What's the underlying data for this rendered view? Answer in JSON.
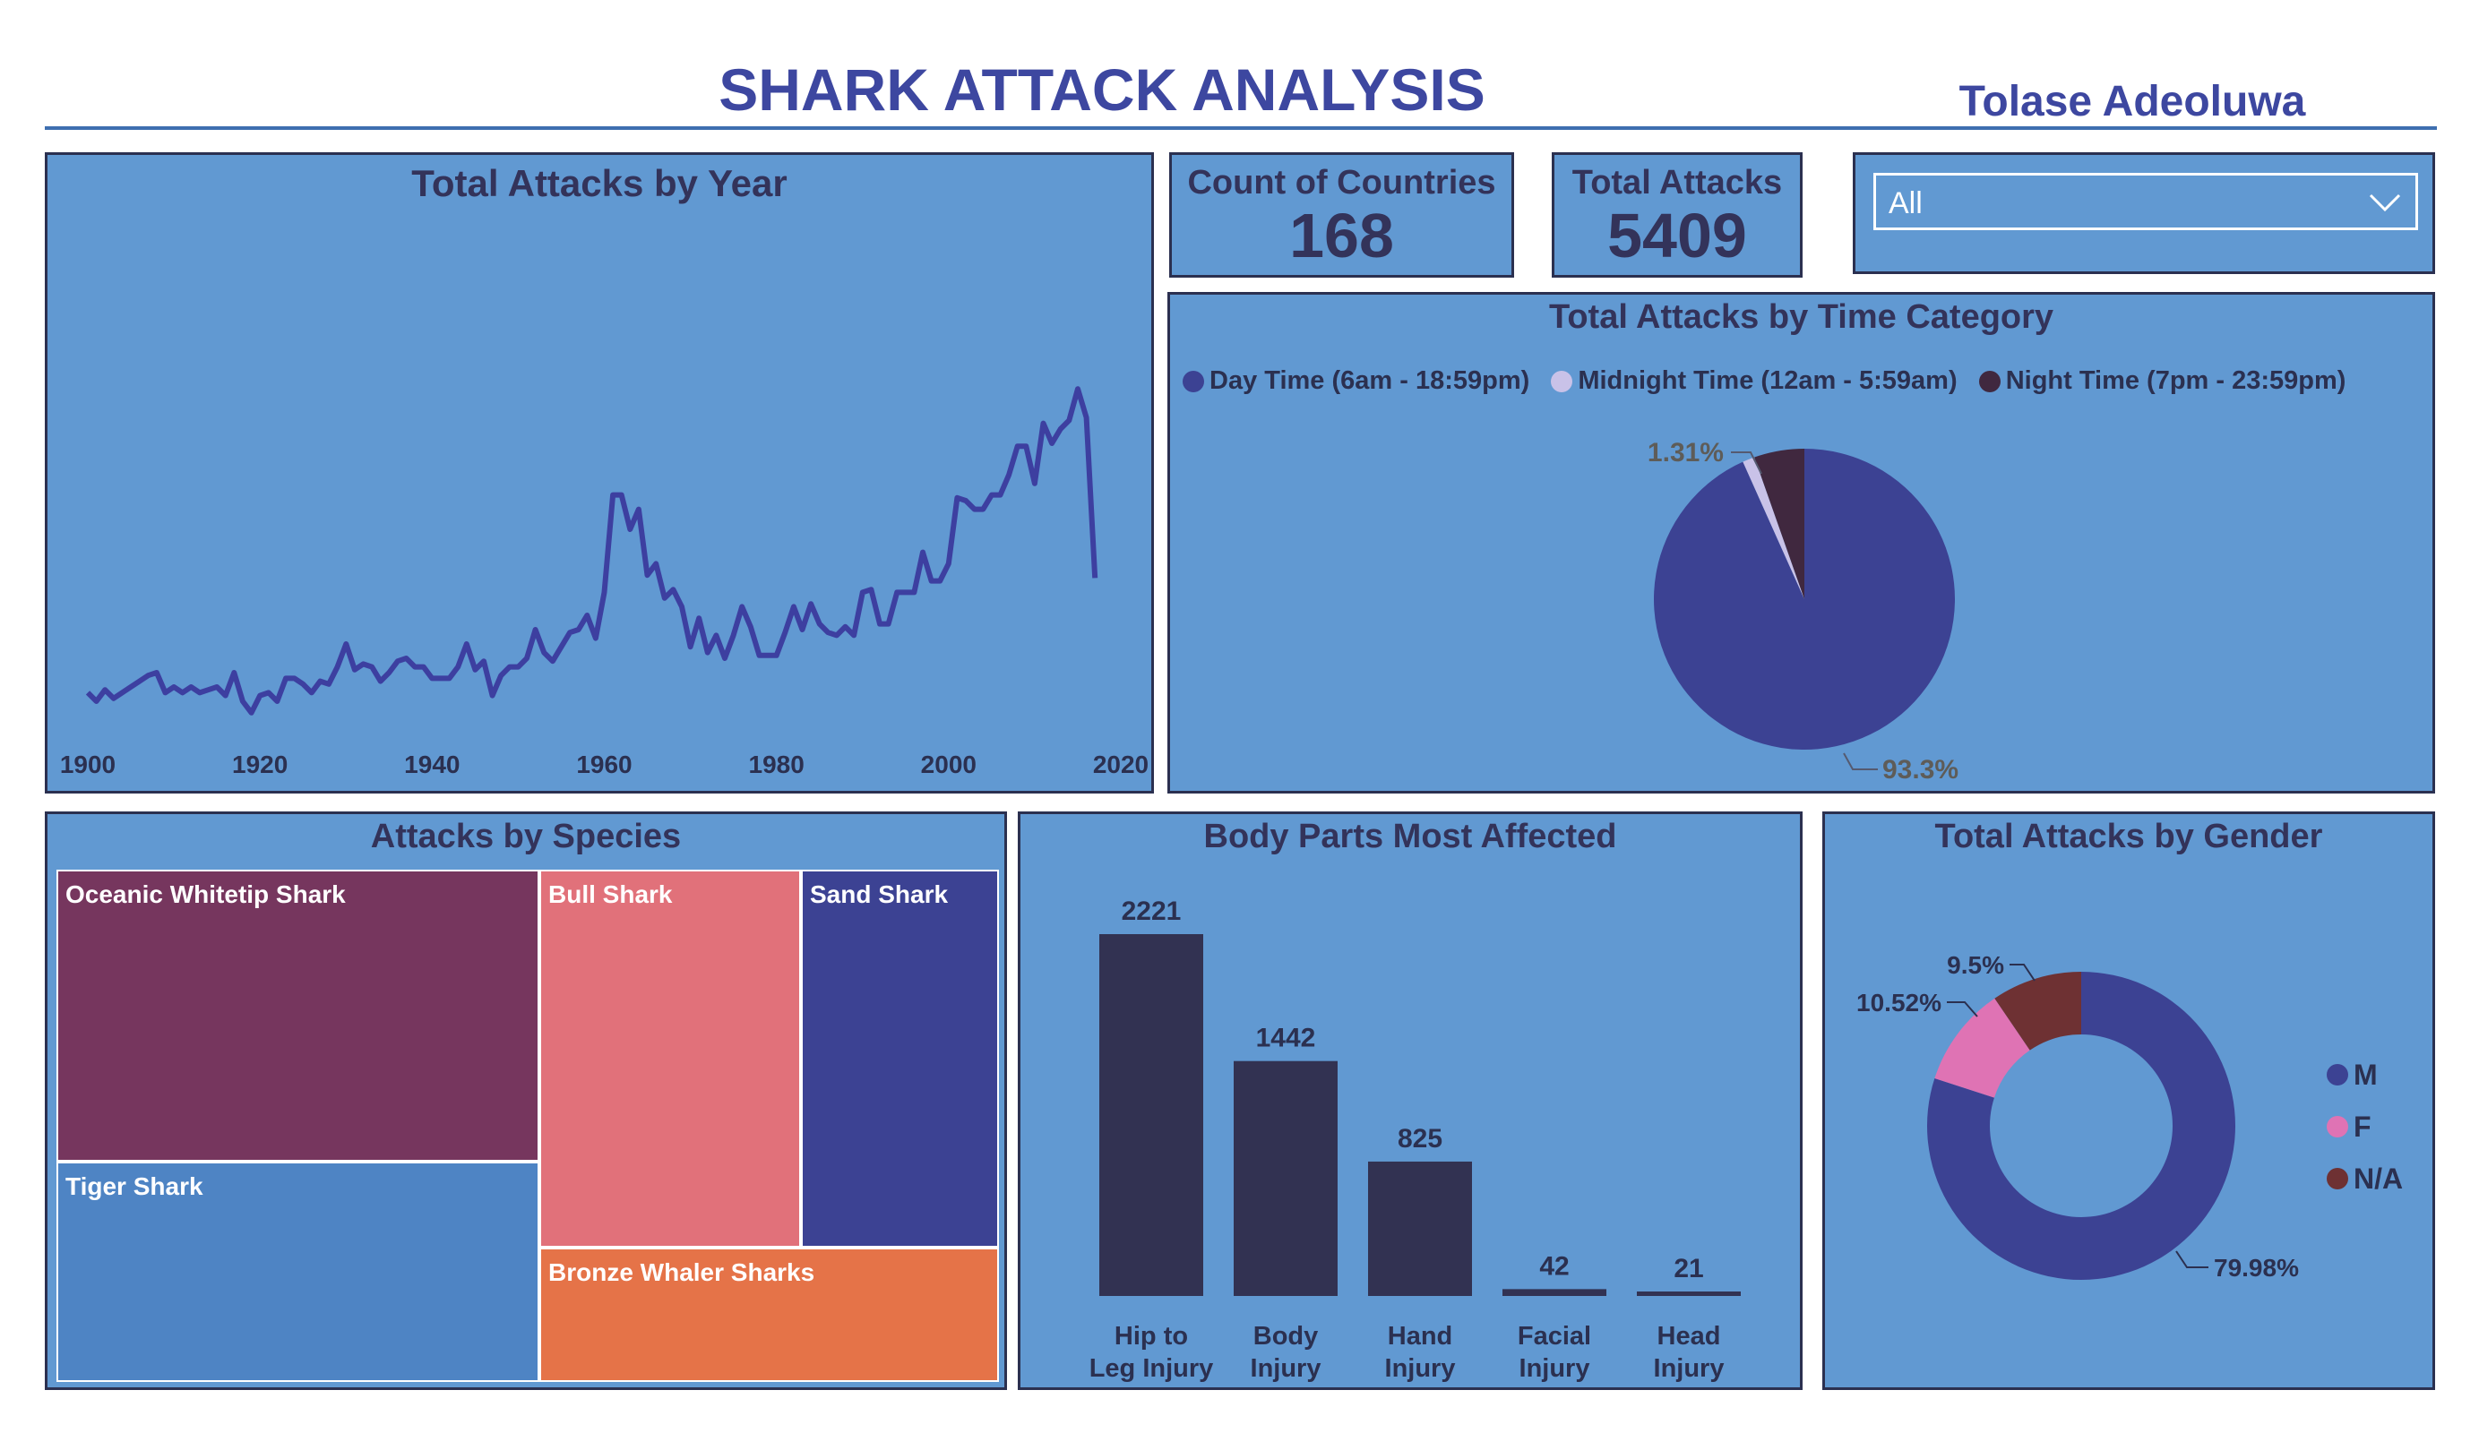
{
  "header": {
    "title": "SHARK ATTACK ANALYSIS",
    "author": "Tolase Adeoluwa"
  },
  "cards": {
    "countries": {
      "label": "Count of Countries",
      "value": "168"
    },
    "total": {
      "label": "Total Attacks",
      "value": "5409"
    }
  },
  "filter": {
    "selected": "All",
    "icon": "chevron-down-icon"
  },
  "colors": {
    "panel": "#6199d2",
    "line": "#3d3fa0",
    "bar": "#323252",
    "day": "#3c4293",
    "midnight": "#c9c2e8",
    "night": "#40283f",
    "male": "#3c4293",
    "female": "#df73b4",
    "na": "#6e3133"
  },
  "chart_data": [
    {
      "type": "line",
      "title": "Total Attacks by Year",
      "x_ticks": [
        "1900",
        "1920",
        "1940",
        "1960",
        "1980",
        "2000",
        "2020"
      ],
      "xlim": [
        1900,
        2020
      ],
      "ylim": [
        0,
        150
      ],
      "series": [
        {
          "x": [
            1900,
            1901,
            1902,
            1903,
            1904,
            1905,
            1906,
            1907,
            1908,
            1909,
            1910,
            1911,
            1912,
            1913,
            1914,
            1915,
            1916,
            1917,
            1918,
            1919,
            1920,
            1921,
            1922,
            1923,
            1924,
            1925,
            1926,
            1927,
            1928,
            1929,
            1930,
            1931,
            1932,
            1933,
            1934,
            1935,
            1936,
            1937,
            1938,
            1939,
            1940,
            1941,
            1942,
            1943,
            1944,
            1945,
            1946,
            1947,
            1948,
            1949,
            1950,
            1951,
            1952,
            1953,
            1954,
            1955,
            1956,
            1957,
            1958,
            1959,
            1960,
            1961,
            1962,
            1963,
            1964,
            1965,
            1966,
            1967,
            1968,
            1969,
            1970,
            1971,
            1972,
            1973,
            1974,
            1975,
            1976,
            1977,
            1978,
            1979,
            1980,
            1981,
            1982,
            1983,
            1984,
            1985,
            1986,
            1987,
            1988,
            1989,
            1990,
            1991,
            1992,
            1993,
            1994,
            1995,
            1996,
            1997,
            1998,
            1999,
            2000,
            2001,
            2002,
            2003,
            2004,
            2005,
            2006,
            2007,
            2008,
            2009,
            2010,
            2011,
            2012,
            2013,
            2014,
            2015,
            2016,
            2017
          ],
          "values": [
            13,
            10,
            14,
            11,
            13,
            15,
            17,
            19,
            20,
            13,
            15,
            13,
            15,
            13,
            14,
            15,
            12,
            20,
            10,
            6,
            12,
            13,
            10,
            18,
            18,
            16,
            13,
            17,
            16,
            22,
            30,
            21,
            23,
            22,
            17,
            20,
            24,
            25,
            22,
            22,
            18,
            18,
            18,
            22,
            30,
            21,
            24,
            12,
            19,
            22,
            22,
            25,
            35,
            27,
            24,
            29,
            34,
            35,
            40,
            32,
            48,
            82,
            82,
            70,
            77,
            54,
            58,
            46,
            49,
            43,
            29,
            39,
            27,
            33,
            25,
            33,
            43,
            36,
            26,
            26,
            26,
            34,
            43,
            35,
            44,
            37,
            34,
            33,
            36,
            33,
            48,
            49,
            37,
            37,
            48,
            48,
            48,
            62,
            52,
            52,
            58,
            81,
            80,
            77,
            77,
            82,
            82,
            89,
            99,
            99,
            86,
            107,
            100,
            105,
            108,
            119,
            109,
            53
          ]
        }
      ]
    },
    {
      "type": "pie",
      "title": "Total Attacks by Time Category",
      "labels": [
        "Day Time (6am - 18:59pm)",
        "Midnight Time (12am - 5:59am)",
        "Night Time (7pm - 23:59pm)"
      ],
      "values": [
        93.3,
        1.31,
        5.39
      ],
      "data_labels": [
        "93.3%",
        "1.31%",
        ""
      ]
    },
    {
      "type": "treemap",
      "title": "Attacks by Species",
      "labels": [
        "Oceanic Whitetip Shark",
        "Tiger Shark",
        "Bull Shark",
        "Sand Shark",
        "Bronze Whaler Sharks"
      ],
      "colors": [
        "#76365e",
        "#4e84c4",
        "#e1717a",
        "#3c4293",
        "#e57348"
      ]
    },
    {
      "type": "bar",
      "title": "Body Parts Most Affected",
      "categories": [
        [
          "Hip to",
          "Leg Injury"
        ],
        [
          "Body",
          "Injury"
        ],
        [
          "Hand",
          "Injury"
        ],
        [
          "Facial",
          "Injury"
        ],
        [
          "Head",
          "Injury"
        ]
      ],
      "values": [
        2221,
        1442,
        825,
        42,
        21
      ],
      "data_labels": [
        "2221",
        "1442",
        "825",
        "42",
        "21"
      ],
      "ylim": [
        0,
        2221
      ]
    },
    {
      "type": "donut",
      "title": "Total Attacks by Gender",
      "labels": [
        "M",
        "F",
        "N/A"
      ],
      "values": [
        79.98,
        10.52,
        9.5
      ],
      "data_labels": [
        "79.98%",
        "10.52%",
        "9.5%"
      ]
    }
  ]
}
